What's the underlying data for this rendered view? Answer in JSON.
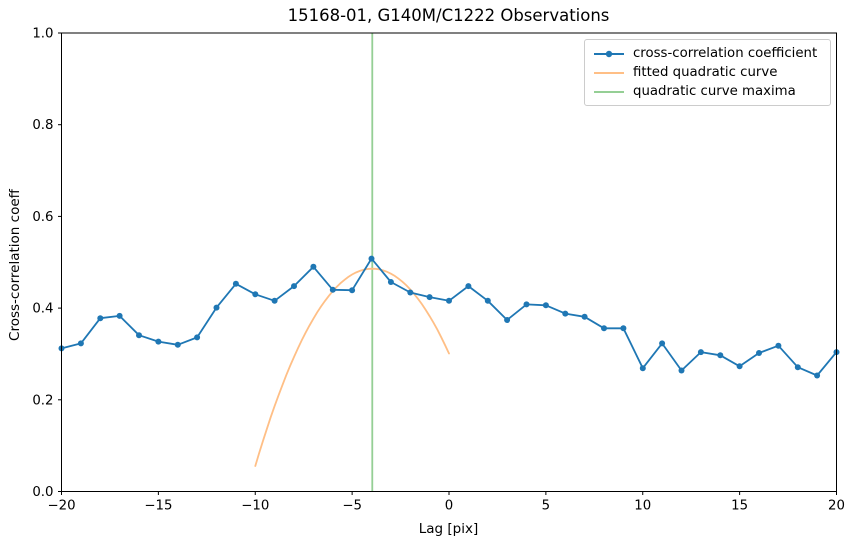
{
  "chart_data": {
    "type": "line",
    "title": "15168-01, G140M/C1222 Observations",
    "xlabel": "Lag [pix]",
    "ylabel": "Cross-correlation coeff",
    "xlim": [
      -20,
      20
    ],
    "ylim": [
      0.0,
      1.0
    ],
    "grid": false,
    "legend_position": "upper right",
    "x_ticks": [
      -20,
      -15,
      -10,
      -5,
      0,
      5,
      10,
      15,
      20
    ],
    "x_tick_labels": [
      "−20",
      "−15",
      "−10",
      "−5",
      "0",
      "5",
      "10",
      "15",
      "20"
    ],
    "y_ticks": [
      0.0,
      0.2,
      0.4,
      0.6,
      0.8,
      1.0
    ],
    "y_tick_labels": [
      "0.0",
      "0.2",
      "0.4",
      "0.6",
      "0.8",
      "1.0"
    ],
    "axis_color": "#000000",
    "series": [
      {
        "name": "cross-correlation coefficient",
        "type": "line+markers",
        "color": "#1f77b4",
        "x": [
          -20,
          -19,
          -18,
          -17,
          -16,
          -15,
          -14,
          -13,
          -12,
          -11,
          -10,
          -9,
          -8,
          -7,
          -6,
          -5,
          -4,
          -3,
          -2,
          -1,
          0,
          1,
          2,
          3,
          4,
          5,
          6,
          7,
          8,
          9,
          10,
          11,
          12,
          13,
          14,
          15,
          16,
          17,
          18,
          19,
          20
        ],
        "y": [
          0.312,
          0.323,
          0.378,
          0.383,
          0.341,
          0.327,
          0.32,
          0.336,
          0.401,
          0.453,
          0.43,
          0.416,
          0.448,
          0.49,
          0.44,
          0.439,
          0.508,
          0.457,
          0.434,
          0.424,
          0.416,
          0.448,
          0.416,
          0.374,
          0.408,
          0.406,
          0.388,
          0.381,
          0.356,
          0.356,
          0.269,
          0.323,
          0.264,
          0.304,
          0.297,
          0.273,
          0.302,
          0.318,
          0.271,
          0.253,
          0.304
        ]
      },
      {
        "name": "fitted quadratic curve",
        "type": "quadratic",
        "color": "#ffbf86",
        "peak_x": -3.96,
        "peak_y": 0.486,
        "coeff_a": -0.0118,
        "x_range": [
          -10,
          0
        ],
        "endpoint_values": [
          0.056,
          0.301
        ]
      },
      {
        "name": "quadratic curve maxima",
        "type": "vline",
        "color": "#95cf95",
        "x": -3.96
      }
    ]
  }
}
